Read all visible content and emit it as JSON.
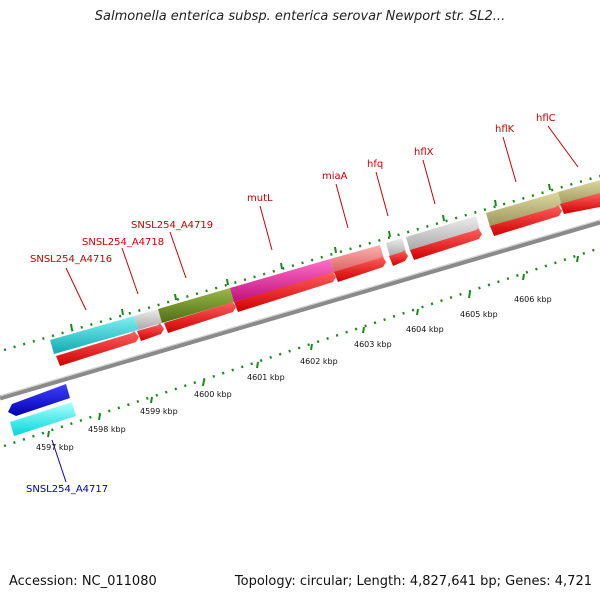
{
  "title": "Salmonella enterica subsp. enterica serovar Newport str. SL2...",
  "footer": {
    "accession": "Accession: NC_011080",
    "summary": "Topology: circular; Length: 4,827,641 bp; Genes: 4,721"
  },
  "colors": {
    "forward_label": "#cc0000",
    "reverse_label": "#0000bb",
    "backbone": "#8a8a8a",
    "tick": "#1a8a1a",
    "cds": "#ff0000"
  },
  "ticks": [
    {
      "label": "4597 kbp"
    },
    {
      "label": "4598 kbp"
    },
    {
      "label": "4599 kbp"
    },
    {
      "label": "4600 kbp"
    },
    {
      "label": "4601 kbp"
    },
    {
      "label": "4602 kbp"
    },
    {
      "label": "4603 kbp"
    },
    {
      "label": "4604 kbp"
    },
    {
      "label": "4605 kbp"
    },
    {
      "label": "4606 kbp"
    }
  ],
  "forward_genes": [
    {
      "label": "SNSL254_A4716",
      "color": "#1fc4cc"
    },
    {
      "label": "SNSL254_A4718",
      "color": "#6b8c1f"
    },
    {
      "label": "SNSL254_A4719",
      "color": "#6b8c1f"
    },
    {
      "label": "mutL",
      "color": "#e81e9c"
    },
    {
      "label": "miaA",
      "color": "#e87a7a"
    },
    {
      "label": "hfq",
      "color": "#c0c0c0"
    },
    {
      "label": "hflX",
      "color": "#c0c0c0"
    },
    {
      "label": "hflK",
      "color": "#b8b47a"
    },
    {
      "label": "hflC",
      "color": "#b8b47a"
    }
  ],
  "reverse_genes": [
    {
      "label": "SNSL254_A4717",
      "color": "#00ffff"
    }
  ]
}
